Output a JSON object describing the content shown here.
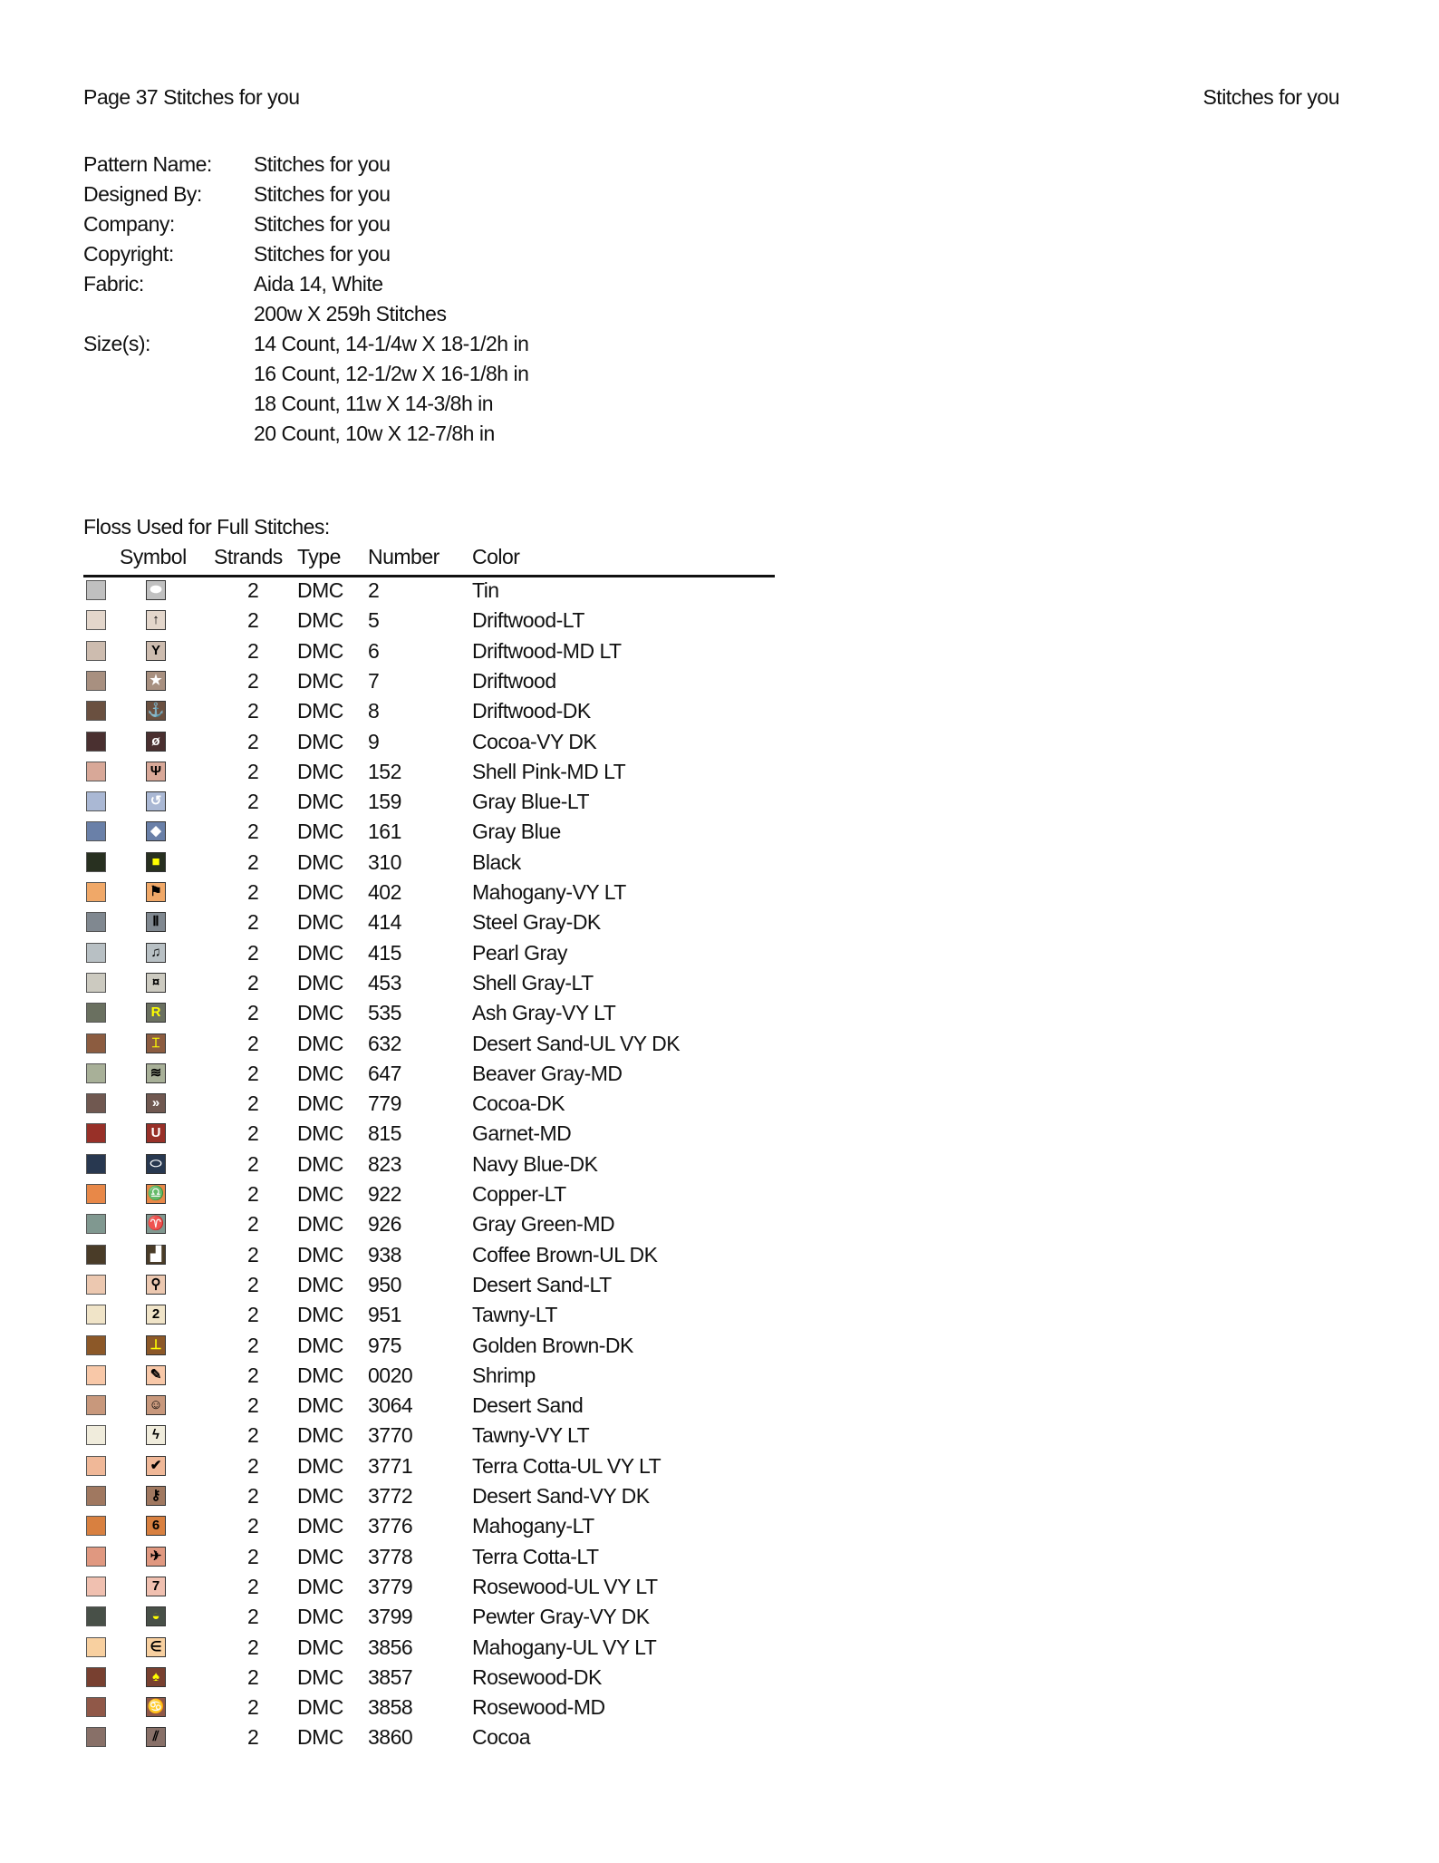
{
  "header": {
    "left": "Page 37  Stitches for you",
    "right": "Stitches for you"
  },
  "info": [
    {
      "label": "Pattern Name:",
      "value": "Stitches for you"
    },
    {
      "label": "Designed By:",
      "value": "Stitches for you"
    },
    {
      "label": "Company:",
      "value": "Stitches for you"
    },
    {
      "label": "Copyright:",
      "value": "Stitches for you"
    },
    {
      "label": "Fabric:",
      "value": "Aida 14, White"
    },
    {
      "label": "",
      "value": "200w X 259h Stitches"
    },
    {
      "label": "Size(s):",
      "value": "14 Count,   14-1/4w X 18-1/2h in"
    },
    {
      "label": "",
      "value": "16 Count,   12-1/2w X 16-1/8h in"
    },
    {
      "label": "",
      "value": "18 Count,   11w X 14-3/8h in"
    },
    {
      "label": "",
      "value": "20 Count,   10w X 12-7/8h in"
    }
  ],
  "floss": {
    "title": "Floss Used for Full Stitches:",
    "columns": {
      "symbol": "Symbol",
      "strands": "Strands",
      "type": "Type",
      "number": "Number",
      "color": "Color"
    },
    "rows": [
      {
        "strands": "2",
        "type": "DMC",
        "number": "2",
        "color": "Tin",
        "swatch": "#c0c0c0",
        "symbol": "⬬",
        "symbol_color": "#ffffff"
      },
      {
        "strands": "2",
        "type": "DMC",
        "number": "5",
        "color": "Driftwood-LT",
        "swatch": "#e3d6cb",
        "symbol": "↑",
        "symbol_color": "#000000"
      },
      {
        "strands": "2",
        "type": "DMC",
        "number": "6",
        "color": "Driftwood-MD LT",
        "swatch": "#cdbcaf",
        "symbol": "Y",
        "symbol_color": "#000000"
      },
      {
        "strands": "2",
        "type": "DMC",
        "number": "7",
        "color": "Driftwood",
        "swatch": "#a89080",
        "symbol": "★",
        "symbol_color": "#ffffff"
      },
      {
        "strands": "2",
        "type": "DMC",
        "number": "8",
        "color": "Driftwood-DK",
        "swatch": "#6a5040",
        "symbol": "⚓",
        "symbol_color": "#ffffff"
      },
      {
        "strands": "2",
        "type": "DMC",
        "number": "9",
        "color": "Cocoa-VY DK",
        "swatch": "#4a3030",
        "symbol": "ø",
        "symbol_color": "#ffffff"
      },
      {
        "strands": "2",
        "type": "DMC",
        "number": "152",
        "color": "Shell Pink-MD LT",
        "swatch": "#d8a898",
        "symbol": "Ψ",
        "symbol_color": "#000000"
      },
      {
        "strands": "2",
        "type": "DMC",
        "number": "159",
        "color": "Gray Blue-LT",
        "swatch": "#aab8d4",
        "symbol": "↺",
        "symbol_color": "#ffffff"
      },
      {
        "strands": "2",
        "type": "DMC",
        "number": "161",
        "color": "Gray Blue",
        "swatch": "#6a80a8",
        "symbol": "◆",
        "symbol_color": "#ffffff"
      },
      {
        "strands": "2",
        "type": "DMC",
        "number": "310",
        "color": "Black",
        "swatch": "#283020",
        "symbol": "■",
        "symbol_color": "#ffff00"
      },
      {
        "strands": "2",
        "type": "DMC",
        "number": "402",
        "color": "Mahogany-VY LT",
        "swatch": "#f0a868",
        "symbol": "⚑",
        "symbol_color": "#000000"
      },
      {
        "strands": "2",
        "type": "DMC",
        "number": "414",
        "color": "Steel Gray-DK",
        "swatch": "#808890",
        "symbol": "Ⅱ",
        "symbol_color": "#000000"
      },
      {
        "strands": "2",
        "type": "DMC",
        "number": "415",
        "color": "Pearl Gray",
        "swatch": "#b8c0c4",
        "symbol": "♫",
        "symbol_color": "#000000"
      },
      {
        "strands": "2",
        "type": "DMC",
        "number": "453",
        "color": "Shell Gray-LT",
        "swatch": "#cccac0",
        "symbol": "¤",
        "symbol_color": "#000000"
      },
      {
        "strands": "2",
        "type": "DMC",
        "number": "535",
        "color": "Ash Gray-VY LT",
        "swatch": "#6a7060",
        "symbol": "R",
        "symbol_color": "#ffff00"
      },
      {
        "strands": "2",
        "type": "DMC",
        "number": "632",
        "color": "Desert Sand-UL VY DK",
        "swatch": "#8c5c40",
        "symbol": "⌶",
        "symbol_color": "#ffff00"
      },
      {
        "strands": "2",
        "type": "DMC",
        "number": "647",
        "color": "Beaver Gray-MD",
        "swatch": "#a8b098",
        "symbol": "≋",
        "symbol_color": "#000000"
      },
      {
        "strands": "2",
        "type": "DMC",
        "number": "779",
        "color": "Cocoa-DK",
        "swatch": "#705850",
        "symbol": "»",
        "symbol_color": "#ffffff"
      },
      {
        "strands": "2",
        "type": "DMC",
        "number": "815",
        "color": "Garnet-MD",
        "swatch": "#983028",
        "symbol": "U",
        "symbol_color": "#ffffff"
      },
      {
        "strands": "2",
        "type": "DMC",
        "number": "823",
        "color": "Navy Blue-DK",
        "swatch": "#283850",
        "symbol": "⬭",
        "symbol_color": "#ffffff"
      },
      {
        "strands": "2",
        "type": "DMC",
        "number": "922",
        "color": "Copper-LT",
        "swatch": "#e88848",
        "symbol": "♎",
        "symbol_color": "#000000"
      },
      {
        "strands": "2",
        "type": "DMC",
        "number": "926",
        "color": "Gray Green-MD",
        "swatch": "#809890",
        "symbol": "♈",
        "symbol_color": "#000000"
      },
      {
        "strands": "2",
        "type": "DMC",
        "number": "938",
        "color": "Coffee Brown-UL DK",
        "swatch": "#4a3c28",
        "symbol": "▟",
        "symbol_color": "#ffffff"
      },
      {
        "strands": "2",
        "type": "DMC",
        "number": "950",
        "color": "Desert Sand-LT",
        "swatch": "#ecc8b0",
        "symbol": "⚲",
        "symbol_color": "#000000"
      },
      {
        "strands": "2",
        "type": "DMC",
        "number": "951",
        "color": "Tawny-LT",
        "swatch": "#f0e4c8",
        "symbol": "2",
        "symbol_color": "#000000"
      },
      {
        "strands": "2",
        "type": "DMC",
        "number": "975",
        "color": "Golden Brown-DK",
        "swatch": "#8c5828",
        "symbol": "⊥",
        "symbol_color": "#ffff00"
      },
      {
        "strands": "2",
        "type": "DMC",
        "number": "0020",
        "color": "Shrimp",
        "swatch": "#f8c8a8",
        "symbol": "✎",
        "symbol_color": "#000000"
      },
      {
        "strands": "2",
        "type": "DMC",
        "number": "3064",
        "color": "Desert Sand",
        "swatch": "#c8987c",
        "symbol": "☺",
        "symbol_color": "#000000"
      },
      {
        "strands": "2",
        "type": "DMC",
        "number": "3770",
        "color": "Tawny-VY LT",
        "swatch": "#f0ecdc",
        "symbol": "ϟ",
        "symbol_color": "#000000"
      },
      {
        "strands": "2",
        "type": "DMC",
        "number": "3771",
        "color": "Terra Cotta-UL VY LT",
        "swatch": "#f0b898",
        "symbol": "✔",
        "symbol_color": "#000000"
      },
      {
        "strands": "2",
        "type": "DMC",
        "number": "3772",
        "color": "Desert Sand-VY DK",
        "swatch": "#a07860",
        "symbol": "⚷",
        "symbol_color": "#000000"
      },
      {
        "strands": "2",
        "type": "DMC",
        "number": "3776",
        "color": "Mahogany-LT",
        "swatch": "#d88040",
        "symbol": "6",
        "symbol_color": "#000000"
      },
      {
        "strands": "2",
        "type": "DMC",
        "number": "3778",
        "color": "Terra Cotta-LT",
        "swatch": "#e09880",
        "symbol": "✈",
        "symbol_color": "#000000"
      },
      {
        "strands": "2",
        "type": "DMC",
        "number": "3779",
        "color": "Rosewood-UL VY LT",
        "swatch": "#f0c0b0",
        "symbol": "7",
        "symbol_color": "#000000"
      },
      {
        "strands": "2",
        "type": "DMC",
        "number": "3799",
        "color": "Pewter Gray-VY DK",
        "swatch": "#485048",
        "symbol": "◒",
        "symbol_color": "#ffff00"
      },
      {
        "strands": "2",
        "type": "DMC",
        "number": "3856",
        "color": "Mahogany-UL VY LT",
        "swatch": "#f8d0a0",
        "symbol": "∈",
        "symbol_color": "#000000"
      },
      {
        "strands": "2",
        "type": "DMC",
        "number": "3857",
        "color": "Rosewood-DK",
        "swatch": "#784030",
        "symbol": "♠",
        "symbol_color": "#ffff00"
      },
      {
        "strands": "2",
        "type": "DMC",
        "number": "3858",
        "color": "Rosewood-MD",
        "swatch": "#905848",
        "symbol": "♋",
        "symbol_color": "#ffff00"
      },
      {
        "strands": "2",
        "type": "DMC",
        "number": "3860",
        "color": "Cocoa",
        "swatch": "#887068",
        "symbol": "⫽",
        "symbol_color": "#000000"
      }
    ]
  }
}
